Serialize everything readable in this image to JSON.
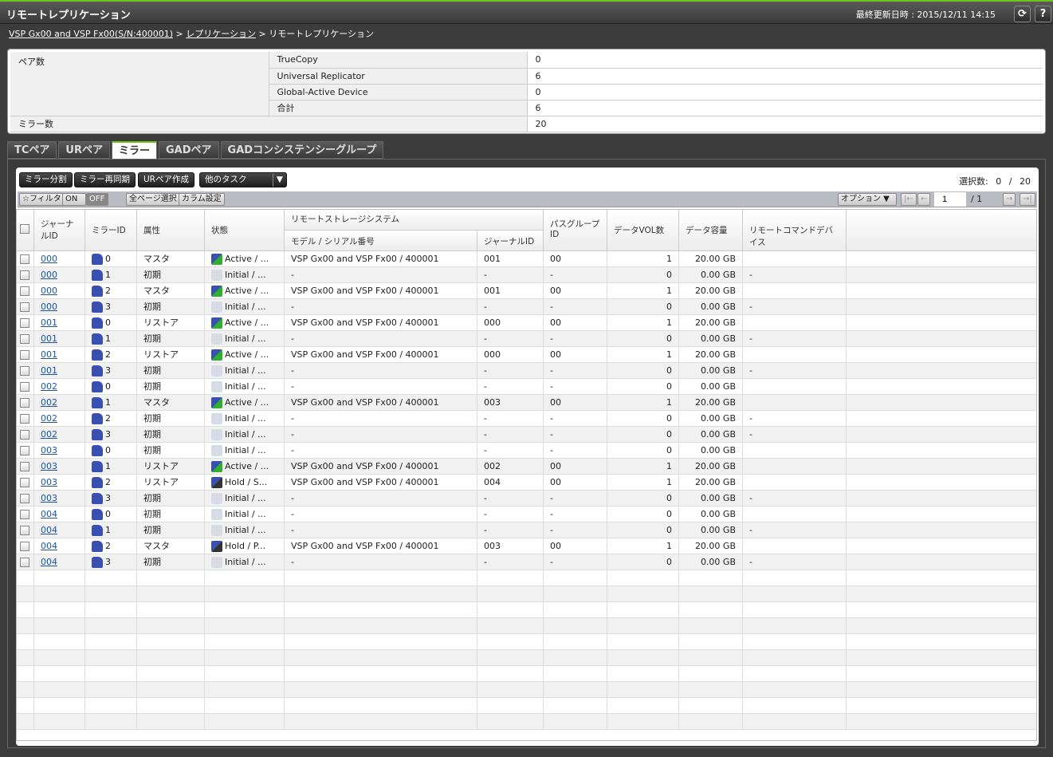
{
  "header": {
    "title": "リモートレプリケーション",
    "last_updated": "最終更新日時 : 2015/12/11 14:15",
    "refresh_icon": "refresh-icon",
    "help_label": "?"
  },
  "breadcrumb": {
    "items": [
      "VSP Gx00 and VSP Fx00(S/N:400001)",
      "レプリケーション",
      "リモートレプリケーション"
    ],
    "sep": ">"
  },
  "summary": {
    "pair_label": "ペア数",
    "pairs": [
      {
        "label": "TrueCopy",
        "value": "0"
      },
      {
        "label": "Universal Replicator",
        "value": "6"
      },
      {
        "label": "Global-Active Device",
        "value": "0"
      },
      {
        "label": "合計",
        "value": "6"
      }
    ],
    "mirror_label": "ミラー数",
    "mirror_value": "20"
  },
  "tabs": [
    {
      "label": "TCペア"
    },
    {
      "label": "URペア"
    },
    {
      "label": "ミラー",
      "active": true
    },
    {
      "label": "GADペア"
    },
    {
      "label": "GADコンシステンシーグループ"
    }
  ],
  "actions": {
    "split": "ミラー分割",
    "resync": "ミラー再同期",
    "create": "URペア作成",
    "more": "他のタスク"
  },
  "selection": {
    "label": "選択数:",
    "selected": "0",
    "sep": "/",
    "total": "20"
  },
  "filter": {
    "label": "☆フィルタ",
    "on": "ON",
    "off": "OFF",
    "select_all": "全ページ選択",
    "columns": "カラム設定",
    "option": "オプション",
    "page": "1",
    "pages": "/ 1"
  },
  "columns": {
    "journal": "ジャーナルID",
    "mirror": "ミラーID",
    "attr": "属性",
    "status": "状態",
    "remote": "リモートストレージシステム",
    "model": "モデル / シリアル番号",
    "rjid": "ジャーナルID",
    "path": "パスグループID",
    "vols": "データVOL数",
    "cap": "データ容量",
    "rcd": "リモートコマンドデバイス"
  },
  "colors": {
    "accent": "#6fc21c",
    "link": "#1a56a8"
  },
  "rows": [
    [
      "000",
      "0",
      "マスタ",
      "Active / ...",
      "VSP Gx00 and VSP Fx00 / 400001",
      "001",
      "00",
      "1",
      "20.00 GB",
      ""
    ],
    [
      "000",
      "1",
      "初期",
      "Initial / ...",
      "-",
      "-",
      "-",
      "0",
      "0.00 GB",
      "-"
    ],
    [
      "000",
      "2",
      "マスタ",
      "Active / ...",
      "VSP Gx00 and VSP Fx00 / 400001",
      "001",
      "00",
      "1",
      "20.00 GB",
      ""
    ],
    [
      "000",
      "3",
      "初期",
      "Initial / ...",
      "-",
      "-",
      "-",
      "0",
      "0.00 GB",
      "-"
    ],
    [
      "001",
      "0",
      "リストア",
      "Active / ...",
      "VSP Gx00 and VSP Fx00 / 400001",
      "000",
      "00",
      "1",
      "20.00 GB",
      ""
    ],
    [
      "001",
      "1",
      "初期",
      "Initial / ...",
      "-",
      "-",
      "-",
      "0",
      "0.00 GB",
      "-"
    ],
    [
      "001",
      "2",
      "リストア",
      "Active / ...",
      "VSP Gx00 and VSP Fx00 / 400001",
      "000",
      "00",
      "1",
      "20.00 GB",
      ""
    ],
    [
      "001",
      "3",
      "初期",
      "Initial / ...",
      "-",
      "-",
      "-",
      "0",
      "0.00 GB",
      "-"
    ],
    [
      "002",
      "0",
      "初期",
      "Initial / ...",
      "-",
      "-",
      "-",
      "0",
      "0.00 GB",
      ""
    ],
    [
      "002",
      "1",
      "マスタ",
      "Active / ...",
      "VSP Gx00 and VSP Fx00 / 400001",
      "003",
      "00",
      "1",
      "20.00 GB",
      ""
    ],
    [
      "002",
      "2",
      "初期",
      "Initial / ...",
      "-",
      "-",
      "-",
      "0",
      "0.00 GB",
      "-"
    ],
    [
      "002",
      "3",
      "初期",
      "Initial / ...",
      "-",
      "-",
      "-",
      "0",
      "0.00 GB",
      "-"
    ],
    [
      "003",
      "0",
      "初期",
      "Initial / ...",
      "-",
      "-",
      "-",
      "0",
      "0.00 GB",
      ""
    ],
    [
      "003",
      "1",
      "リストア",
      "Active / ...",
      "VSP Gx00 and VSP Fx00 / 400001",
      "002",
      "00",
      "1",
      "20.00 GB",
      ""
    ],
    [
      "003",
      "2",
      "リストア",
      "Hold / S...",
      "VSP Gx00 and VSP Fx00 / 400001",
      "004",
      "00",
      "1",
      "20.00 GB",
      ""
    ],
    [
      "003",
      "3",
      "初期",
      "Initial / ...",
      "-",
      "-",
      "-",
      "0",
      "0.00 GB",
      "-"
    ],
    [
      "004",
      "0",
      "初期",
      "Initial / ...",
      "-",
      "-",
      "-",
      "0",
      "0.00 GB",
      ""
    ],
    [
      "004",
      "1",
      "初期",
      "Initial / ...",
      "-",
      "-",
      "-",
      "0",
      "0.00 GB",
      "-"
    ],
    [
      "004",
      "2",
      "マスタ",
      "Hold / P...",
      "VSP Gx00 and VSP Fx00 / 400001",
      "003",
      "00",
      "1",
      "20.00 GB",
      ""
    ],
    [
      "004",
      "3",
      "初期",
      "Initial / ...",
      "-",
      "-",
      "-",
      "0",
      "0.00 GB",
      "-"
    ]
  ]
}
